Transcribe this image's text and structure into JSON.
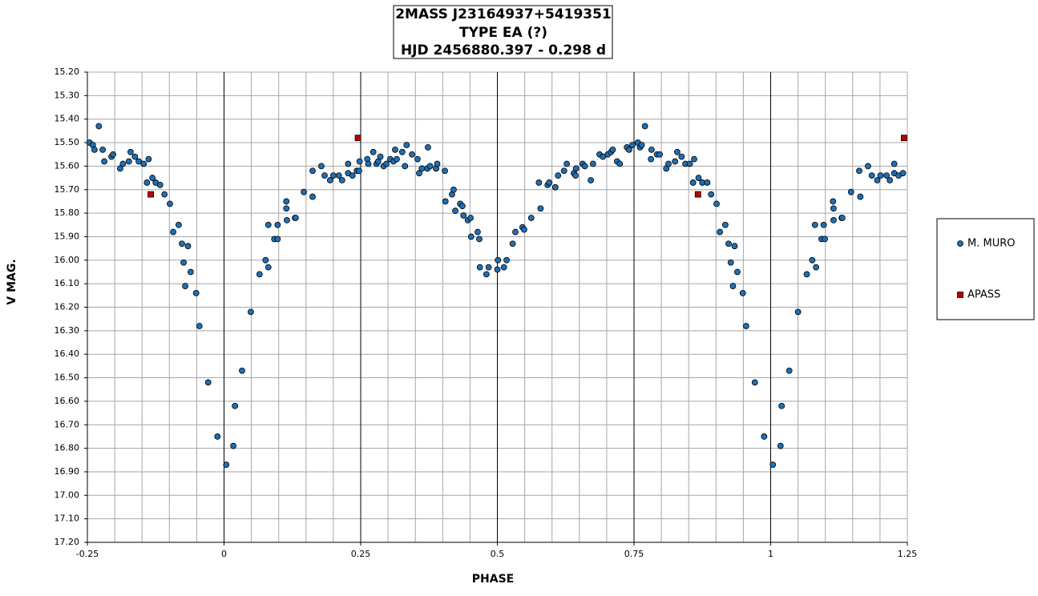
{
  "chart_data": {
    "type": "scatter",
    "title": [
      "2MASS J23164937+5419351",
      "TYPE EA (?)",
      "HJD 2456880.397 - 0.298 d"
    ],
    "xlabel": "PHASE",
    "ylabel": "V MAG.",
    "xlim": [
      -0.25,
      1.25
    ],
    "ylim": [
      15.2,
      17.2
    ],
    "y_inverted": true,
    "grid": true,
    "legend": "right",
    "xticks": [
      -0.25,
      0,
      0.25,
      0.5,
      0.75,
      1,
      1.25
    ],
    "yticks": [
      {
        "value": 15.2,
        "label": "15.20"
      },
      {
        "value": 15.3,
        "label": "15.30"
      },
      {
        "value": 15.4,
        "label": "15.40"
      },
      {
        "value": 15.5,
        "label": "15.50"
      },
      {
        "value": 15.6,
        "label": "15.60"
      },
      {
        "value": 15.7,
        "label": "15.70"
      },
      {
        "value": 15.8,
        "label": "15.80"
      },
      {
        "value": 15.9,
        "label": "15.90"
      },
      {
        "value": 16.0,
        "label": "16.00"
      },
      {
        "value": 16.1,
        "label": "16.10"
      },
      {
        "value": 16.2,
        "label": "16.20"
      },
      {
        "value": 16.3,
        "label": "16.30"
      },
      {
        "value": 16.4,
        "label": "16.40"
      },
      {
        "value": 16.5,
        "label": "16.50"
      },
      {
        "value": 16.6,
        "label": "16.60"
      },
      {
        "value": 16.7,
        "label": "16.70"
      },
      {
        "value": 16.8,
        "label": "16.80"
      },
      {
        "value": 16.9,
        "label": "16.90"
      },
      {
        "value": 17.0,
        "label": "17.00"
      },
      {
        "value": 17.1,
        "label": "17.10"
      },
      {
        "value": 17.2,
        "label": "17.20"
      }
    ],
    "series": [
      {
        "name": "M. MURO",
        "color": "#1f6fb4",
        "marker": "circle",
        "x": [
          -0.246,
          -0.24,
          -0.237,
          -0.229,
          -0.222,
          -0.219,
          -0.206,
          -0.203,
          -0.19,
          -0.185,
          -0.174,
          -0.171,
          -0.163,
          -0.156,
          -0.147,
          -0.141,
          -0.138,
          -0.131,
          -0.125,
          -0.117,
          -0.109,
          -0.099,
          -0.093,
          -0.083,
          -0.077,
          -0.074,
          -0.071,
          -0.066,
          -0.061,
          -0.051,
          -0.045,
          -0.029,
          -0.012,
          0.004,
          0.017,
          0.02,
          0.033,
          0.049,
          0.065,
          0.076,
          0.081,
          0.081,
          0.092,
          0.098,
          0.098,
          0.114,
          0.115,
          0.114,
          0.13,
          0.131,
          0.146,
          0.162,
          0.162,
          0.178,
          0.184,
          0.194,
          0.2,
          0.21,
          0.216,
          0.227,
          0.227,
          0.235,
          0.243,
          0.247,
          0.248,
          0.262,
          0.264,
          0.273,
          0.279,
          0.282,
          0.286,
          0.292,
          0.297,
          0.304,
          0.31,
          0.313,
          0.316,
          0.326,
          0.331,
          0.334,
          0.344,
          0.354,
          0.357,
          0.362,
          0.372,
          0.373,
          0.377,
          0.388,
          0.39,
          0.404,
          0.405,
          0.417,
          0.42,
          0.423,
          0.432,
          0.436,
          0.438,
          0.446,
          0.451,
          0.452,
          0.464,
          0.467,
          0.468,
          0.48,
          0.484,
          0.5,
          0.501,
          0.512,
          0.517,
          0.528,
          0.533,
          0.546,
          0.549,
          0.562,
          0.576,
          0.579,
          0.592,
          0.595,
          0.606,
          0.611,
          0.622,
          0.627,
          0.64,
          0.643,
          0.644,
          0.656,
          0.66,
          0.671,
          0.675,
          0.687,
          0.693,
          0.702,
          0.708,
          0.711,
          0.719,
          0.724,
          0.737,
          0.741,
          0.747,
          0.757,
          0.761,
          0.764,
          0.77,
          0.782,
          0.781,
          0.792,
          0.797,
          0.809,
          0.813,
          0.825,
          0.829,
          0.837,
          0.844,
          0.852,
          0.86,
          0.858,
          0.868,
          0.875,
          0.884,
          0.891,
          0.901,
          0.907,
          0.917,
          0.923,
          0.927,
          0.931,
          0.934,
          0.939,
          0.949,
          0.955,
          0.971,
          0.988,
          1.004,
          1.018,
          1.02,
          1.034,
          1.05,
          1.066,
          1.076,
          1.081,
          1.083,
          1.093,
          1.099,
          1.097,
          1.114,
          1.115,
          1.115,
          1.13,
          1.131,
          1.147,
          1.162,
          1.164,
          1.178,
          1.185,
          1.195,
          1.201,
          1.212,
          1.218,
          1.226,
          1.226,
          1.234,
          1.242
        ],
        "values": [
          15.5,
          15.51,
          15.53,
          15.43,
          15.53,
          15.58,
          15.56,
          15.55,
          15.61,
          15.59,
          15.58,
          15.54,
          15.56,
          15.58,
          15.59,
          15.67,
          15.57,
          15.65,
          15.67,
          15.68,
          15.72,
          15.76,
          15.88,
          15.85,
          15.93,
          16.01,
          16.11,
          15.94,
          16.05,
          16.14,
          16.28,
          16.52,
          16.75,
          16.87,
          16.79,
          16.62,
          16.47,
          16.22,
          16.06,
          16.0,
          15.85,
          16.03,
          15.91,
          15.91,
          15.85,
          15.75,
          15.83,
          15.78,
          15.82,
          15.82,
          15.71,
          15.62,
          15.73,
          15.6,
          15.64,
          15.66,
          15.64,
          15.64,
          15.66,
          15.59,
          15.63,
          15.64,
          15.62,
          15.62,
          15.58,
          15.57,
          15.59,
          15.54,
          15.59,
          15.58,
          15.56,
          15.6,
          15.59,
          15.57,
          15.58,
          15.53,
          15.57,
          15.54,
          15.6,
          15.51,
          15.55,
          15.57,
          15.63,
          15.61,
          15.61,
          15.52,
          15.6,
          15.61,
          15.59,
          15.62,
          15.75,
          15.72,
          15.7,
          15.79,
          15.76,
          15.77,
          15.81,
          15.83,
          15.82,
          15.9,
          15.88,
          15.91,
          16.03,
          16.06,
          16.03,
          16.04,
          16.0,
          16.03,
          16.0,
          15.93,
          15.88,
          15.86,
          15.87,
          15.82,
          15.67,
          15.78,
          15.68,
          15.67,
          15.69,
          15.64,
          15.62,
          15.59,
          15.63,
          15.64,
          15.61,
          15.59,
          15.6,
          15.66,
          15.59,
          15.55,
          15.56,
          15.55,
          15.54,
          15.53,
          15.58,
          15.59,
          15.52,
          15.53,
          15.51,
          15.5,
          15.52,
          15.51,
          15.43,
          15.53,
          15.57,
          15.55,
          15.55,
          15.61,
          15.59,
          15.58,
          15.54,
          15.56,
          15.59,
          15.59,
          15.57,
          15.67,
          15.65,
          15.67,
          15.67,
          15.72,
          15.76,
          15.88,
          15.85,
          15.93,
          16.01,
          16.11,
          15.94,
          16.05,
          16.14,
          16.28,
          16.52,
          16.75,
          16.87,
          16.79,
          16.62,
          16.47,
          16.22,
          16.06,
          16.0,
          15.85,
          16.03,
          15.91,
          15.91,
          15.85,
          15.75,
          15.83,
          15.78,
          15.82,
          15.82,
          15.71,
          15.62,
          15.73,
          15.6,
          15.64,
          15.66,
          15.64,
          15.64,
          15.66,
          15.59,
          15.63,
          15.64,
          15.63
        ]
      },
      {
        "name": "APASS",
        "color": "#c00000",
        "marker": "square",
        "x": [
          -0.134,
          0.245,
          0.867,
          1.244
        ],
        "values": [
          15.72,
          15.48,
          15.72,
          15.48
        ]
      }
    ]
  }
}
